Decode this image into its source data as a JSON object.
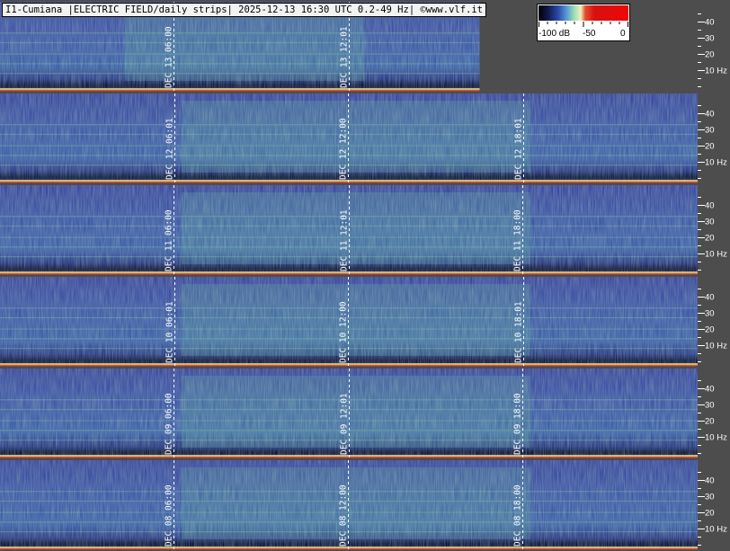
{
  "title": "I1-Cumiana |ELECTRIC FIELD/daily strips| 2025-12-13 16:30 UTC 0.2-49 Hz| ©www.vlf.it",
  "legend": {
    "min_label": "-100 dB",
    "mid_label": "-50",
    "max_label": "0"
  },
  "chart_data": {
    "type": "heatmap",
    "title": "I1-Cumiana |ELECTRIC FIELD/daily strips| 2025-12-13 16:30 UTC 0.2-49 Hz| ©www.vlf.it",
    "xlabel": "",
    "ylabel": "",
    "colorbar": {
      "range_db": [
        -100,
        0
      ],
      "tick_labels": [
        "-100 dB",
        "-50",
        "0"
      ]
    },
    "y_axis": {
      "unit": "Hz",
      "range": [
        0,
        49
      ],
      "ticks": [
        {
          "value": 10,
          "label": "10 Hz"
        },
        {
          "value": 20,
          "label": "20"
        },
        {
          "value": 30,
          "label": "30"
        },
        {
          "value": 40,
          "label": "40"
        }
      ]
    },
    "strips": [
      {
        "date": "DEC 13",
        "time_range_utc": [
          "00:00",
          "16:30"
        ],
        "time_markers": [
          "06:00",
          "12:01"
        ]
      },
      {
        "date": "DEC 12",
        "time_range_utc": [
          "00:00",
          "24:00"
        ],
        "time_markers": [
          "06:01",
          "12:00",
          "18:01"
        ]
      },
      {
        "date": "DEC 11",
        "time_range_utc": [
          "00:00",
          "24:00"
        ],
        "time_markers": [
          "06:00",
          "12:01",
          "18:00"
        ]
      },
      {
        "date": "DEC 10",
        "time_range_utc": [
          "00:00",
          "24:00"
        ],
        "time_markers": [
          "06:01",
          "12:00",
          "18:01"
        ]
      },
      {
        "date": "DEC 09",
        "time_range_utc": [
          "00:00",
          "24:00"
        ],
        "time_markers": [
          "06:00",
          "12:01",
          "18:00"
        ]
      },
      {
        "date": "DEC 08",
        "time_range_utc": [
          "00:00",
          "24:00"
        ],
        "time_markers": [
          "06:00",
          "12:00",
          "18:00"
        ]
      }
    ],
    "grid": false,
    "legend_position": "top-right"
  }
}
